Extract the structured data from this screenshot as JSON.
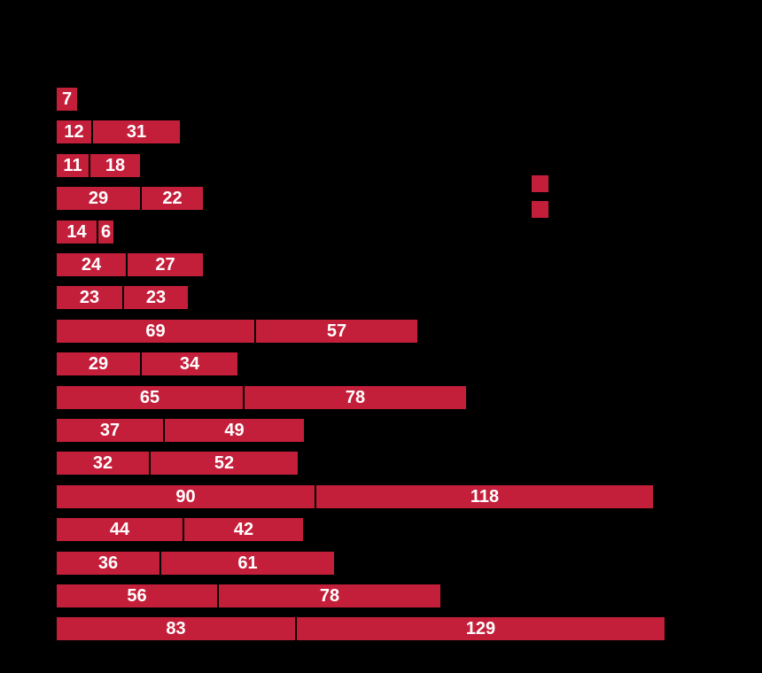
{
  "window": {
    "background_color": "#000000"
  },
  "chart_data": {
    "type": "bar",
    "orientation": "horizontal",
    "stacked": true,
    "grid": false,
    "axes_visible": false,
    "bar_color": "#C41F3A",
    "segment_divider_color": "#000000",
    "value_label_color": "#FFFFFF",
    "series": [
      {
        "values": [
          7,
          12,
          11,
          29,
          14,
          24,
          23,
          69,
          29,
          65,
          37,
          32,
          90,
          44,
          36,
          56,
          83
        ]
      },
      {
        "values": [
          0,
          31,
          18,
          22,
          6,
          27,
          23,
          57,
          34,
          78,
          49,
          52,
          118,
          42,
          61,
          78,
          129
        ]
      }
    ],
    "row_totals": [
      7,
      43,
      29,
      51,
      20,
      51,
      46,
      126,
      63,
      143,
      86,
      84,
      208,
      86,
      97,
      134,
      212
    ],
    "value_labels_shown": true
  },
  "legend": {
    "position": "right",
    "swatches": [
      {
        "color": "#C41F3A"
      },
      {
        "color": "#C41F3A"
      }
    ]
  }
}
